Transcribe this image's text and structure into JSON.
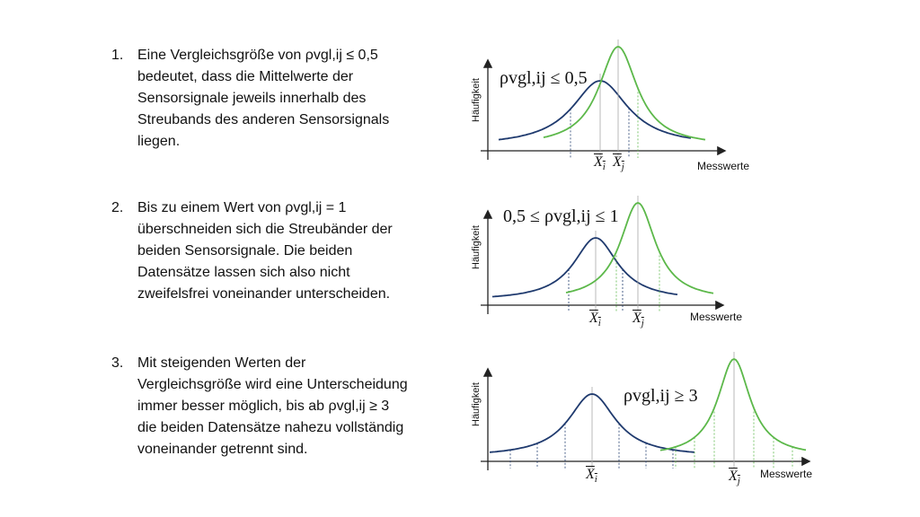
{
  "items": [
    {
      "number": "1.",
      "lines": [
        "Eine Vergleichsgröße von ρvgl,ij ≤ 0,5",
        "bedeutet, dass die Mittelwerte der",
        "Sensorsignale jeweils innerhalb des",
        "Streubands des anderen Sensorsignals",
        "liegen."
      ]
    },
    {
      "number": "2.",
      "lines": [
        "Bis zu einem Wert von ρvgl,ij = 1",
        "überschneiden sich die Streubänder der",
        "beiden Sensorsignale. Die beiden",
        "Datensätze lassen sich also nicht",
        "zweifelsfrei voneinander unterscheiden."
      ]
    },
    {
      "number": "3.",
      "lines": [
        "Mit steigenden Werten der",
        "Vergleichsgröße wird eine Unterscheidung",
        "immer besser möglich, bis ab ρvgl,ij ≥ 3",
        "die beiden Datensätze nahezu vollständig",
        "voneinander getrennt sind."
      ]
    }
  ],
  "diagrams": [
    {
      "condition": "ρvgl,ij ≤ 0,5",
      "ylabel": "Häufigkeit",
      "xlabel": "Messwerte",
      "mean_i": "X",
      "sub_i": "i",
      "mean_j": "X",
      "sub_j": "j"
    },
    {
      "condition": "0,5 ≤ ρvgl,ij ≤ 1",
      "ylabel": "Häufigkeit",
      "xlabel": "Messwerte",
      "mean_i": "X",
      "sub_i": "i",
      "mean_j": "X",
      "sub_j": "j"
    },
    {
      "condition": "ρvgl,ij ≥ 3",
      "ylabel": "Häufigkeit",
      "xlabel": "Messwerte",
      "mean_i": "X",
      "sub_i": "i",
      "mean_j": "X",
      "sub_j": "j"
    }
  ],
  "colors": {
    "blue": "#1f3a6e",
    "green": "#5cb84a",
    "axis": "#222222"
  }
}
